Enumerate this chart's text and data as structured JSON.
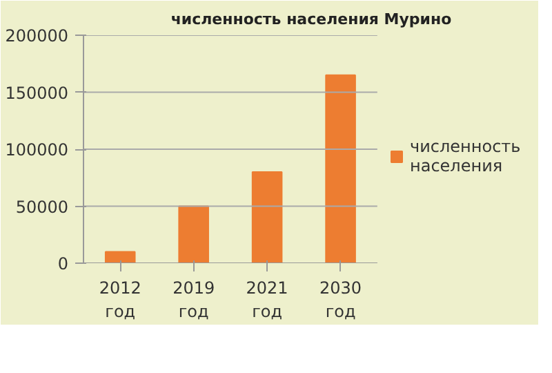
{
  "chart_data": {
    "type": "bar",
    "title": "численность населения Мурино",
    "categories": [
      "2012\nгод",
      "2019\nгод",
      "2021\nгод",
      "2030\nгод"
    ],
    "series": [
      {
        "name": "численность населения",
        "color": "#ed7d31",
        "values": [
          10000,
          50000,
          80000,
          165000
        ]
      }
    ],
    "ylim": [
      0,
      200000
    ],
    "yticks": [
      0,
      50000,
      100000,
      150000,
      200000
    ],
    "grid": "y",
    "legend": "right"
  }
}
